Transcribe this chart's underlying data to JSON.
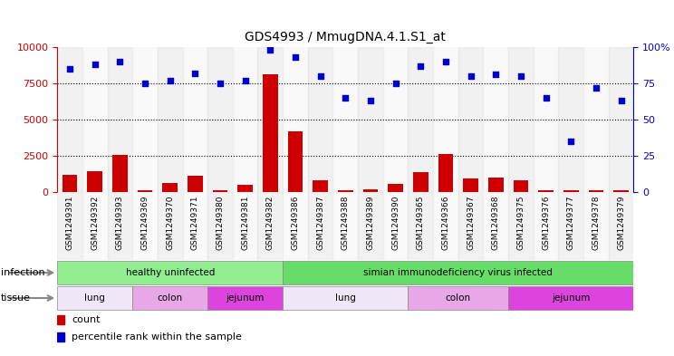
{
  "title": "GDS4993 / MmugDNA.4.1.S1_at",
  "samples": [
    "GSM1249391",
    "GSM1249392",
    "GSM1249393",
    "GSM1249369",
    "GSM1249370",
    "GSM1249371",
    "GSM1249380",
    "GSM1249381",
    "GSM1249382",
    "GSM1249386",
    "GSM1249387",
    "GSM1249388",
    "GSM1249389",
    "GSM1249390",
    "GSM1249365",
    "GSM1249366",
    "GSM1249367",
    "GSM1249368",
    "GSM1249375",
    "GSM1249376",
    "GSM1249377",
    "GSM1249378",
    "GSM1249379"
  ],
  "counts": [
    1200,
    1450,
    2550,
    150,
    600,
    1150,
    100,
    500,
    8100,
    4200,
    800,
    100,
    200,
    550,
    1350,
    2600,
    950,
    1000,
    800,
    150,
    100,
    100,
    130
  ],
  "percentiles": [
    85,
    88,
    90,
    75,
    77,
    82,
    75,
    77,
    98,
    93,
    80,
    65,
    63,
    75,
    87,
    90,
    80,
    81,
    80,
    65,
    35,
    72,
    63
  ],
  "bar_color": "#cc0000",
  "scatter_color": "#0000cc",
  "ylim_left": [
    0,
    10000
  ],
  "ylim_right": [
    0,
    100
  ],
  "yticks_left": [
    0,
    2500,
    5000,
    7500,
    10000
  ],
  "ytick_labels_left": [
    "0",
    "2500",
    "5000",
    "7500",
    "10000"
  ],
  "yticks_right": [
    0,
    25,
    50,
    75,
    100
  ],
  "ytick_labels_right": [
    "0",
    "25",
    "50",
    "75",
    "100%"
  ],
  "infection_groups": [
    {
      "label": "healthy uninfected",
      "start": 0,
      "end": 9,
      "color": "#90ee90"
    },
    {
      "label": "simian immunodeficiency virus infected",
      "start": 9,
      "end": 23,
      "color": "#66dd66"
    }
  ],
  "tissue_groups": [
    {
      "label": "lung",
      "start": 0,
      "end": 3,
      "color": "#f0e8f8"
    },
    {
      "label": "colon",
      "start": 3,
      "end": 6,
      "color": "#e8a8e8"
    },
    {
      "label": "jejunum",
      "start": 6,
      "end": 9,
      "color": "#dd88dd"
    },
    {
      "label": "lung",
      "start": 9,
      "end": 14,
      "color": "#f0e8f8"
    },
    {
      "label": "colon",
      "start": 14,
      "end": 18,
      "color": "#e8a8e8"
    },
    {
      "label": "jejunum",
      "start": 18,
      "end": 23,
      "color": "#dd44dd"
    }
  ],
  "col_bg_even": "#d8d8d8",
  "col_bg_odd": "#f0f0f0",
  "plot_bg_color": "#ffffff",
  "grid_color": "#000000",
  "dotted_lines": [
    2500,
    5000,
    7500
  ],
  "infection_label": "infection",
  "tissue_label": "tissue",
  "arrow_color": "#888888",
  "figure_bg": "#ffffff",
  "legend_count_label": "count",
  "legend_pct_label": "percentile rank within the sample"
}
